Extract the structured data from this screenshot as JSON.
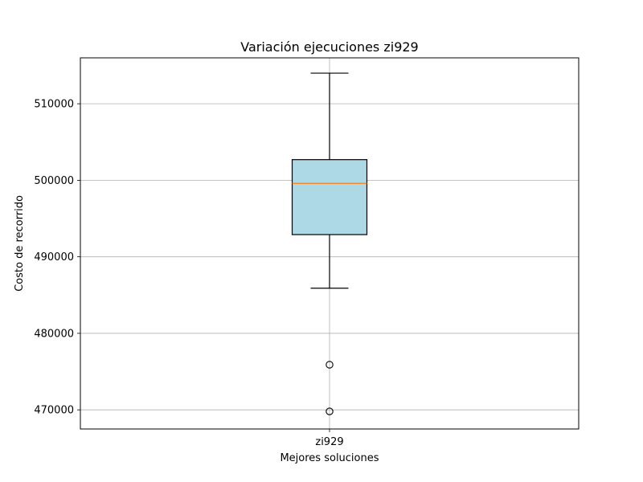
{
  "chart_data": {
    "type": "box",
    "title": "Variación ejecuciones zi929",
    "xlabel": "Mejores soluciones",
    "ylabel": "Costo de recorrido",
    "categories": [
      "zi929"
    ],
    "ylim": [
      467500,
      516000
    ],
    "yticks": [
      470000,
      480000,
      490000,
      500000,
      510000
    ],
    "grid": true,
    "box_color": "#add8e6",
    "median_color": "#ff7f0e",
    "boxes": [
      {
        "name": "zi929",
        "whisker_low": 485900,
        "q1": 492900,
        "median": 499600,
        "q3": 502700,
        "whisker_high": 514000,
        "outliers": [
          475900,
          469800
        ]
      }
    ]
  }
}
